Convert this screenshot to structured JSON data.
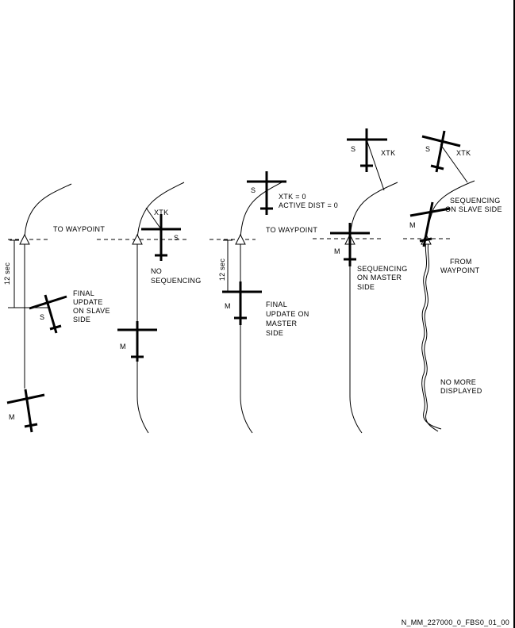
{
  "diagram": {
    "reference_code": "N_MM_227000_0_FBS0_01_00",
    "aircraft": {
      "master": "M",
      "slave": "S"
    },
    "panels": [
      {
        "id": "panel-1",
        "labels": {
          "to_waypoint": "TO WAYPOINT",
          "time": "12 sec",
          "final_update": [
            "FINAL",
            "UPDATE",
            "ON SLAVE",
            "SIDE"
          ]
        }
      },
      {
        "id": "panel-2",
        "labels": {
          "xtk": "XTK",
          "no_sequencing": [
            "NO",
            "SEQUENCING"
          ]
        }
      },
      {
        "id": "panel-3",
        "labels": {
          "xtk_zero": "XTK = 0",
          "active_dist": "ACTIVE DIST = 0",
          "to_waypoint": "TO WAYPOINT",
          "time": "12 sec",
          "final_update": [
            "FINAL",
            "UPDATE ON",
            "MASTER",
            "SIDE"
          ]
        }
      },
      {
        "id": "panel-4",
        "labels": {
          "xtk": "XTK",
          "sequencing": [
            "SEQUENCING",
            "ON MASTER",
            "SIDE"
          ]
        }
      },
      {
        "id": "panel-5",
        "labels": {
          "xtk": "XTK",
          "sequencing": [
            "SEQUENCING",
            "ON SLAVE SIDE"
          ],
          "from_waypoint": [
            "FROM",
            "WAYPOINT"
          ],
          "no_more": [
            "NO MORE",
            "DISPLAYED"
          ]
        }
      }
    ]
  }
}
